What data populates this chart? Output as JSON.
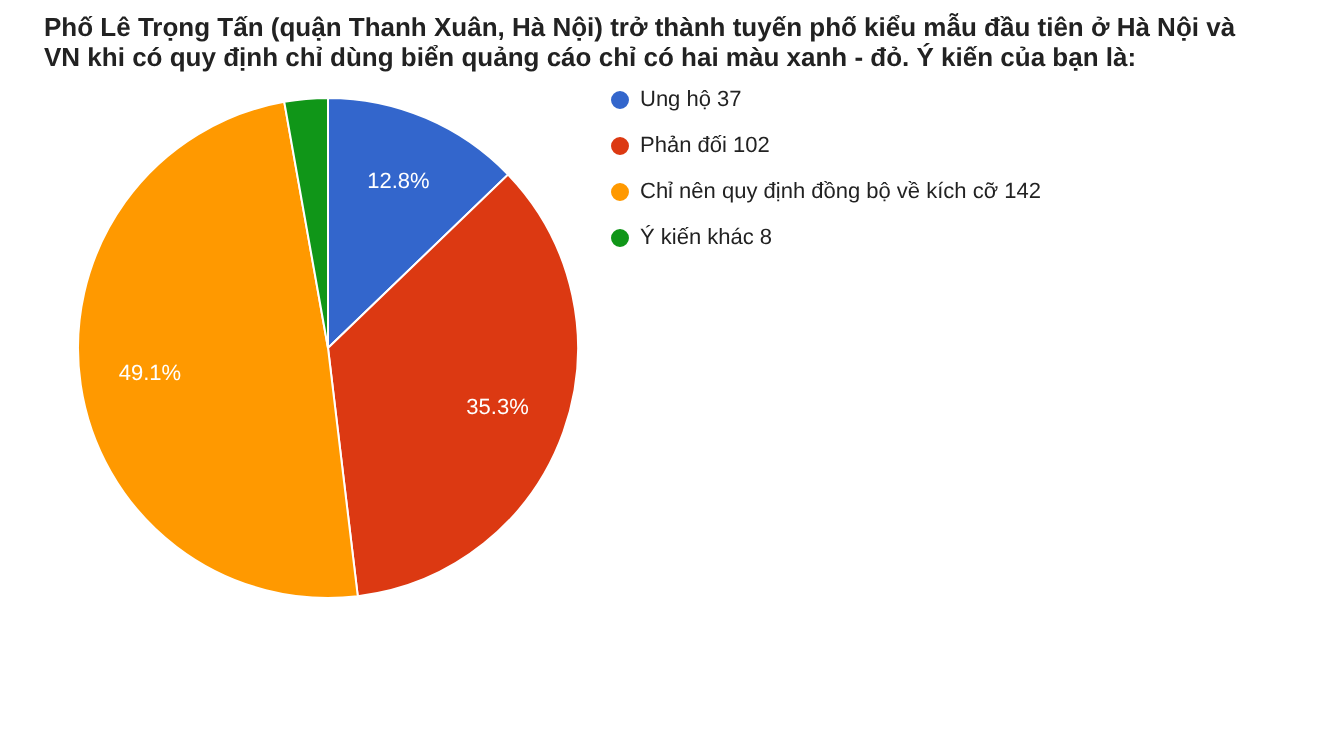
{
  "chart_data": {
    "type": "pie",
    "title": "Phố Lê Trọng Tấn (quận Thanh Xuân, Hà Nội) trở thành tuyến phố kiểu mẫu đầu tiên ở Hà Nội và VN khi có quy định chỉ dùng biển quảng cáo chỉ có hai màu xanh - đỏ. Ý kiến của bạn là:",
    "categories": [
      "Ung hộ 37",
      "Phản đối 102",
      "Chỉ nên quy định đồng bộ về kích cỡ 142",
      "Ý kiến khác 8"
    ],
    "values": [
      12.8,
      35.3,
      49.1,
      2.8
    ],
    "colors": [
      "#3366cc",
      "#dc3912",
      "#ff9900",
      "#109618"
    ],
    "value_labels": [
      "12.8%",
      "35.3%",
      "49.1%",
      null
    ],
    "legend": "right"
  }
}
